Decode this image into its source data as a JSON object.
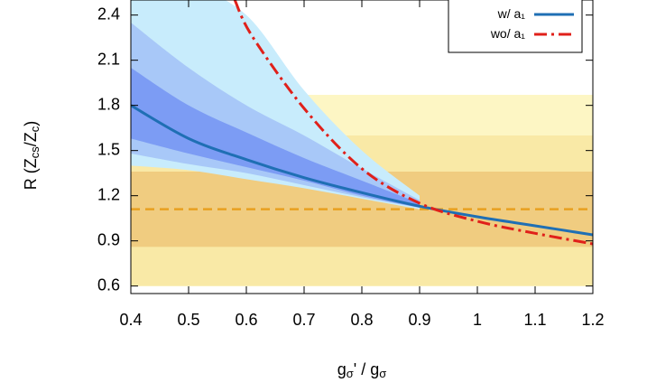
{
  "chart_data": {
    "type": "line",
    "xlabel": "g_{σ}' / g_{σ}",
    "ylabel": "R (Z_{cs}/Z_{c})",
    "xlim": [
      0.4,
      1.2
    ],
    "ylim": [
      0.55,
      2.5
    ],
    "xticks": [
      0.4,
      0.5,
      0.6,
      0.7,
      0.8,
      0.9,
      1,
      1.1,
      1.2
    ],
    "yticks": [
      0.6,
      0.9,
      1.2,
      1.5,
      1.8,
      2.1,
      2.4
    ],
    "legend_position": "upper right",
    "hbands": [
      {
        "lower": 0.6,
        "upper": 1.87,
        "color": "#fdf6c4"
      },
      {
        "lower": 0.6,
        "upper": 1.6,
        "color": "#f9e9a6"
      },
      {
        "lower": 0.86,
        "upper": 1.36,
        "color": "#f0cc80"
      }
    ],
    "hline": {
      "value": 1.11,
      "color": "#e8a020"
    },
    "bands": {
      "x": [
        0.4,
        0.5,
        0.6,
        0.7,
        0.8,
        0.9
      ],
      "levels": [
        {
          "color": "#c8ecfc",
          "lower": [
            1.4,
            1.37,
            1.31,
            1.25,
            1.18,
            1.11
          ],
          "upper": [
            2.7,
            2.6,
            2.4,
            1.9,
            1.5,
            1.2
          ]
        },
        {
          "color": "#a8c8f8",
          "lower": [
            1.48,
            1.41,
            1.35,
            1.27,
            1.19,
            1.12
          ],
          "upper": [
            2.35,
            2.05,
            1.8,
            1.6,
            1.38,
            1.17
          ]
        },
        {
          "color": "#7c9cf4",
          "lower": [
            1.58,
            1.48,
            1.39,
            1.3,
            1.2,
            1.12
          ],
          "upper": [
            2.05,
            1.8,
            1.62,
            1.45,
            1.3,
            1.15
          ]
        }
      ]
    },
    "series": [
      {
        "name": "w/ a₁",
        "color": "#1f6fb4",
        "dash": "none",
        "x": [
          0.4,
          0.5,
          0.6,
          0.7,
          0.8,
          0.9,
          1,
          1.1,
          1.2
        ],
        "values": [
          1.8,
          1.58,
          1.44,
          1.32,
          1.22,
          1.13,
          1.06,
          1.0,
          0.94
        ]
      },
      {
        "name": "wo/ a₁",
        "color": "#e0201a",
        "dash": "14 5 3 5",
        "x": [
          0.58,
          0.61,
          0.7,
          0.8,
          0.9,
          1,
          1.1,
          1.2
        ],
        "values": [
          2.5,
          2.26,
          1.78,
          1.38,
          1.15,
          1.03,
          0.95,
          0.88
        ]
      }
    ]
  }
}
